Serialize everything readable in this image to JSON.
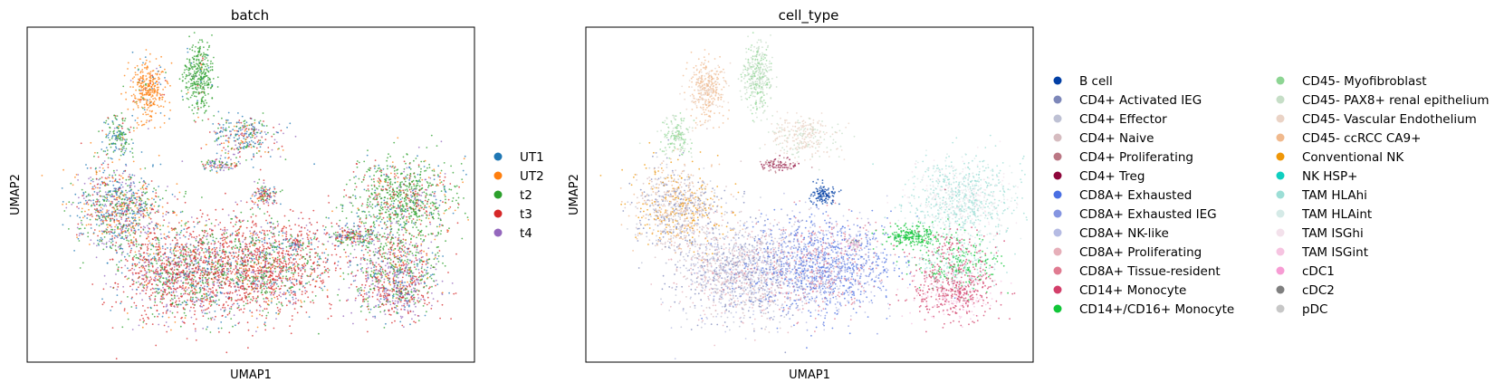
{
  "chart_data": [
    {
      "type": "scatter",
      "title": "batch",
      "xlabel": "UMAP1",
      "ylabel": "UMAP2",
      "grid": false,
      "ticks": false,
      "legend_placement": "right",
      "series": [
        {
          "name": "UT1",
          "color": "#1f77b4"
        },
        {
          "name": "UT2",
          "color": "#ff7f0e"
        },
        {
          "name": "t2",
          "color": "#2ca02c"
        },
        {
          "name": "t3",
          "color": "#d62728"
        },
        {
          "name": "t4",
          "color": "#9467bd"
        }
      ]
    },
    {
      "type": "scatter",
      "title": "cell_type",
      "xlabel": "UMAP1",
      "ylabel": "UMAP2",
      "grid": false,
      "ticks": false,
      "legend_placement": "right",
      "series": [
        {
          "name": "B cell",
          "color": "#023fa5"
        },
        {
          "name": "CD4+ Activated IEG",
          "color": "#7d87b9"
        },
        {
          "name": "CD4+ Effector",
          "color": "#bec1d4"
        },
        {
          "name": "CD4+ Naive",
          "color": "#d6bcc0"
        },
        {
          "name": "CD4+ Proliferating",
          "color": "#bb7784"
        },
        {
          "name": "CD4+ Treg",
          "color": "#8e063b"
        },
        {
          "name": "CD8A+ Exhausted",
          "color": "#4a6fe3"
        },
        {
          "name": "CD8A+ Exhausted IEG",
          "color": "#8595e1"
        },
        {
          "name": "CD8A+ NK-like",
          "color": "#b5bbe3"
        },
        {
          "name": "CD8A+ Proliferating",
          "color": "#e6afb9"
        },
        {
          "name": "CD8A+ Tissue-resident",
          "color": "#e07b91"
        },
        {
          "name": "CD14+ Monocyte",
          "color": "#d33f6a"
        },
        {
          "name": "CD14+/CD16+ Monocyte",
          "color": "#11c638"
        },
        {
          "name": "CD45- Myofibroblast",
          "color": "#8dd593"
        },
        {
          "name": "CD45- PAX8+ renal epithelium",
          "color": "#c6dec7"
        },
        {
          "name": "CD45- Vascular Endothelium",
          "color": "#ead3c6"
        },
        {
          "name": "CD45- ccRCC CA9+",
          "color": "#f0b98d"
        },
        {
          "name": "Conventional NK",
          "color": "#ef9708"
        },
        {
          "name": "NK HSP+",
          "color": "#0fcfc0"
        },
        {
          "name": "TAM HLAhi",
          "color": "#9cded6"
        },
        {
          "name": "TAM HLAint",
          "color": "#d5eae7"
        },
        {
          "name": "TAM ISGhi",
          "color": "#f3e1eb"
        },
        {
          "name": "TAM ISGint",
          "color": "#f6c4e1"
        },
        {
          "name": "cDC1",
          "color": "#f79cd4"
        },
        {
          "name": "cDC2",
          "color": "#7f7f7f"
        },
        {
          "name": "pDC",
          "color": "#c7c7c7"
        }
      ]
    }
  ]
}
